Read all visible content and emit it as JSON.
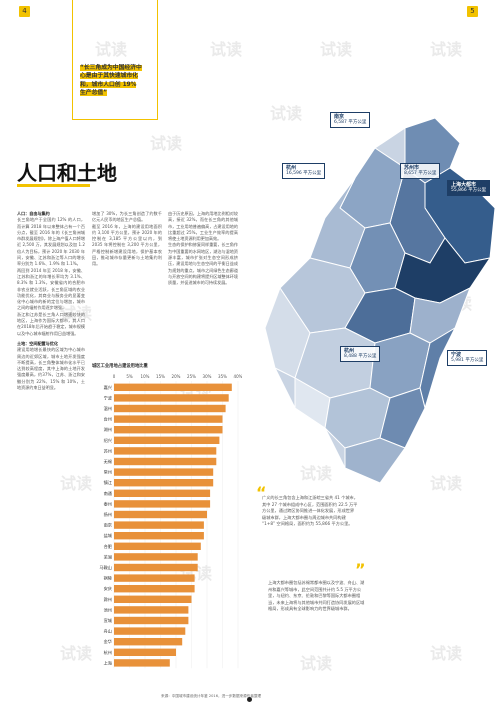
{
  "page_numbers": {
    "left": "4",
    "right": "5"
  },
  "watermark": "试读",
  "headline": "“长三角成为中国经济中心是由于其快速城市化和，城市人口创 19% 生产总值”",
  "section_title": "人口和土地",
  "col1": {
    "heading": "人口：自由与集约",
    "text": "长三角地产于全国约 12% 的人口，而计算 2018 年以来整体占有一个百分点，截至 2016 年的《长三角洲城市群发展规划》，除上海产值人口将增近 2,500 万，其发展规划以及加 1.2 倍人为目标，预计 2020 年 2030 年间，安徽、江苏和浙江等人口的增长率分别为 1.6%、1.9% 和 1.1%。\n两回到 2014 年至 2018 年，安徽、江苏和浙江的年增长率均为 3.1%、8.3% 和 1.3%，安徽省内的合肥市非农业就业活跃，长三角区域的农业功能优化，其商业与服务业的显著变化中心城市的新的定位与增加，城市之间的辐射作用逐步增强。\n浙江和江苏是长三角人口增速较快的地区，上海作为国际大都市，其人口在2018年后开始趋于稳定，城市规模以及中心城市辐射作用日益增强。",
    "heading2": "土地：空间配置与优化",
    "text2": "建设用地增长最快的区域为中心城市周边的近郊区域，城市土地开发强度不断提高，长三角整体城市化水平已达到较高程度，其中上海的土地开发强度最高，约37%，江苏、浙江和安徽分别为 22%、15% 和 10%，土地资源约束日益明显。"
  },
  "col2": {
    "text": "增加了 30%，为长三角创造了约数千亿元人民币的地区生产总值。\n截至 2016 年，上海的建设用地面积约 3,100 平方公里，预计 2020 年的控制在 3,185 平方公里以内，到 2035 年将控制在 3,200 平方公里，严格控制新增建设用地，保护基本农田，推动城市存量更新与土地集约利用。"
  },
  "col3": {
    "text": "由于历史原因，上海的用地比例相对较高，接近 32%，而在长三角的其他城市，工业用地普遍偏高，占建设用地的比重超过 25%，工业生产效率的提高将使土地资源利用更加高效。\n生态的保护和修复同样重要，长三角作为中国重要的水网地区，湖泊与湿地资源丰富，城市扩张对生态空间形成挤压，建设用地与生态空间的平衡日益成为规划的重点，城市之间绿色生态廊道与开放空间的构建将提升区域整体环境质量，并促进城市的可持续发展。"
  },
  "chart_data": {
    "type": "bar",
    "title": "城区工业用地占建设用地比重",
    "categories": [
      "嘉兴",
      "宁波",
      "温州",
      "台州",
      "湖州",
      "绍兴",
      "苏州",
      "无锡",
      "常州",
      "镇江",
      "南通",
      "泰州",
      "扬州",
      "南京",
      "盐城",
      "合肥",
      "芜湖",
      "马鞍山",
      "铜陵",
      "安庆",
      "滁州",
      "池州",
      "宣城",
      "舟山",
      "金华",
      "杭州",
      "上海"
    ],
    "values": [
      38,
      37,
      36,
      35,
      35,
      34,
      33,
      33,
      32,
      32,
      31,
      31,
      30,
      29,
      29,
      28,
      27,
      27,
      26,
      26,
      25,
      24,
      24,
      23,
      22,
      20,
      18
    ],
    "xlim": [
      0,
      40
    ],
    "ticks": [
      "0",
      "5%",
      "10%",
      "15%",
      "20%",
      "25%",
      "30%",
      "35%",
      "40%"
    ],
    "bar_color": "#e8913a"
  },
  "map": {
    "labels": [
      {
        "name": "南京",
        "value": "6,587 平方公里"
      },
      {
        "name": "杭州",
        "value": "16,596 平方公里"
      },
      {
        "name": "苏州市",
        "value": "8,657 平方公里"
      },
      {
        "name": "上海大都市",
        "value": "55,866 平方公里"
      },
      {
        "name": "杭州",
        "value": "8,488 平方公里"
      },
      {
        "name": "宁波",
        "value": "5,981 平方公里"
      }
    ]
  },
  "quote": "广义的长三角包含上海和江浙皖三省共 41 个城市，其中 27 个城市组成中心区，范围面积约 22.5 万平方公里，通过跨区协同推进一体化发展，形成世界级城市群，上海大都市圈与周边城市共同构建 “1+8” 空间格局，面积约为 55,866 平方公里。",
  "bottom_note": "上海大都市圈包括苏锡常都市圈以及宁波、舟山、湖州和嘉兴等城市，此空间范围共计约 5.5 万平方公里，与纽约、东京、伦敦和巴黎等国际大都市圈相当，未来上海将与其他城市共同打造协同发展的区域格局，形成具有全球影响力的世界级城市群。",
  "source": "来源：中国城市建设统计年鉴 2016，进一步数据来源作者整理"
}
